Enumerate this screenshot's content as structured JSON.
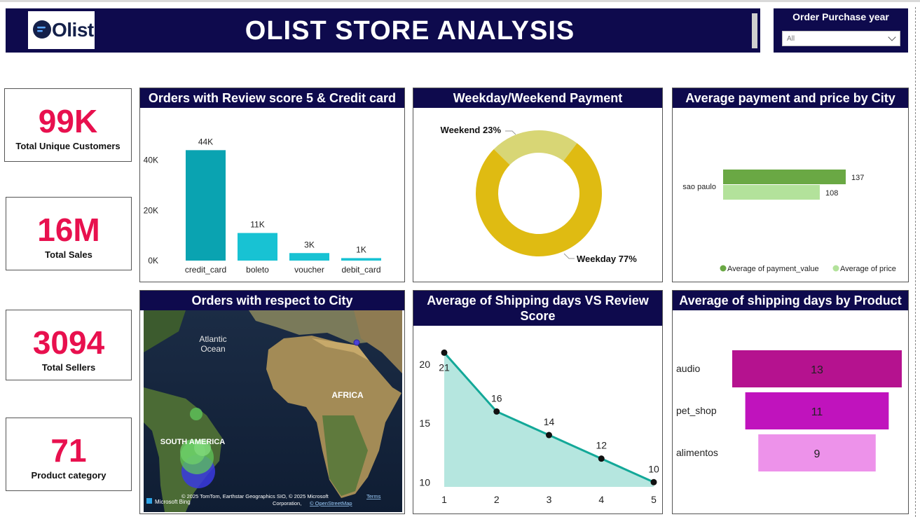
{
  "header": {
    "logo_text": "Olist",
    "title": "OLIST STORE ANALYSIS",
    "filter": {
      "label": "Order Purchase year",
      "selected": "All"
    }
  },
  "kpis": [
    {
      "value": "99K",
      "label": "Total Unique Customers"
    },
    {
      "value": "16M",
      "label": "Total Sales"
    },
    {
      "value": "3094",
      "label": "Total Sellers"
    },
    {
      "value": "71",
      "label": "Product category"
    }
  ],
  "panels": {
    "review_credit": "Orders with Review score 5 & Credit card",
    "weekday_weekend": "Weekday/Weekend Payment",
    "payment_city": "Average payment and price by City",
    "orders_city": "Orders with respect to City",
    "shipping_review": "Average of Shipping days VS Review Score",
    "shipping_product": "Average of shipping days by Product"
  },
  "map": {
    "labels": [
      "Atlantic",
      "Ocean",
      "AFRICA",
      "SOUTH AMERICA"
    ],
    "attribution": "© 2025 TomTom, Earthstar Geographics SIO, © 2025 Microsoft",
    "terms": "Terms",
    "attribution2": "Corporation,",
    "osm": "© OpenStreetMap",
    "bing": "Microsoft Bing"
  },
  "chart_data": [
    {
      "type": "bar",
      "title": "Orders with Review score 5 & Credit card",
      "categories": [
        "credit_card",
        "boleto",
        "voucher",
        "debit_card"
      ],
      "values": [
        44000,
        11000,
        3000,
        1000
      ],
      "data_labels": [
        "44K",
        "11K",
        "3K",
        "1K"
      ],
      "yticks": [
        "0K",
        "20K",
        "40K"
      ],
      "ylim": [
        0,
        48000
      ],
      "color": "#0aa3b1"
    },
    {
      "type": "pie",
      "title": "Weekday/Weekend Payment",
      "labels": [
        "Weekday",
        "Weekend"
      ],
      "values": [
        77,
        23
      ],
      "data_labels": [
        "Weekday 77%",
        "Weekend 23%"
      ],
      "colors": [
        "#dfbb12",
        "#d8d675"
      ]
    },
    {
      "type": "bar",
      "title": "Average payment and price by City",
      "categories": [
        "sao paulo"
      ],
      "series": [
        {
          "name": "Average of payment_value",
          "values": [
            137
          ],
          "color": "#6aa844"
        },
        {
          "name": "Average of price",
          "values": [
            108
          ],
          "color": "#b3e29b"
        }
      ],
      "legend": "bottom-right"
    },
    {
      "type": "area",
      "title": "Average of Shipping days VS Review Score",
      "x": [
        1,
        2,
        3,
        4,
        5
      ],
      "y": [
        21,
        16,
        14,
        12,
        10
      ],
      "yticks": [
        10,
        15,
        20
      ],
      "ylim": [
        9.6,
        21.5
      ],
      "line_color": "#13a898",
      "fill_color": "#b5e6df"
    },
    {
      "type": "bar",
      "title": "Average of shipping days by Product",
      "categories": [
        "audio",
        "pet_shop",
        "alimentos"
      ],
      "values": [
        13,
        11,
        9
      ],
      "colors": [
        "#b5128f",
        "#c013bd",
        "#ed92ea"
      ]
    }
  ]
}
